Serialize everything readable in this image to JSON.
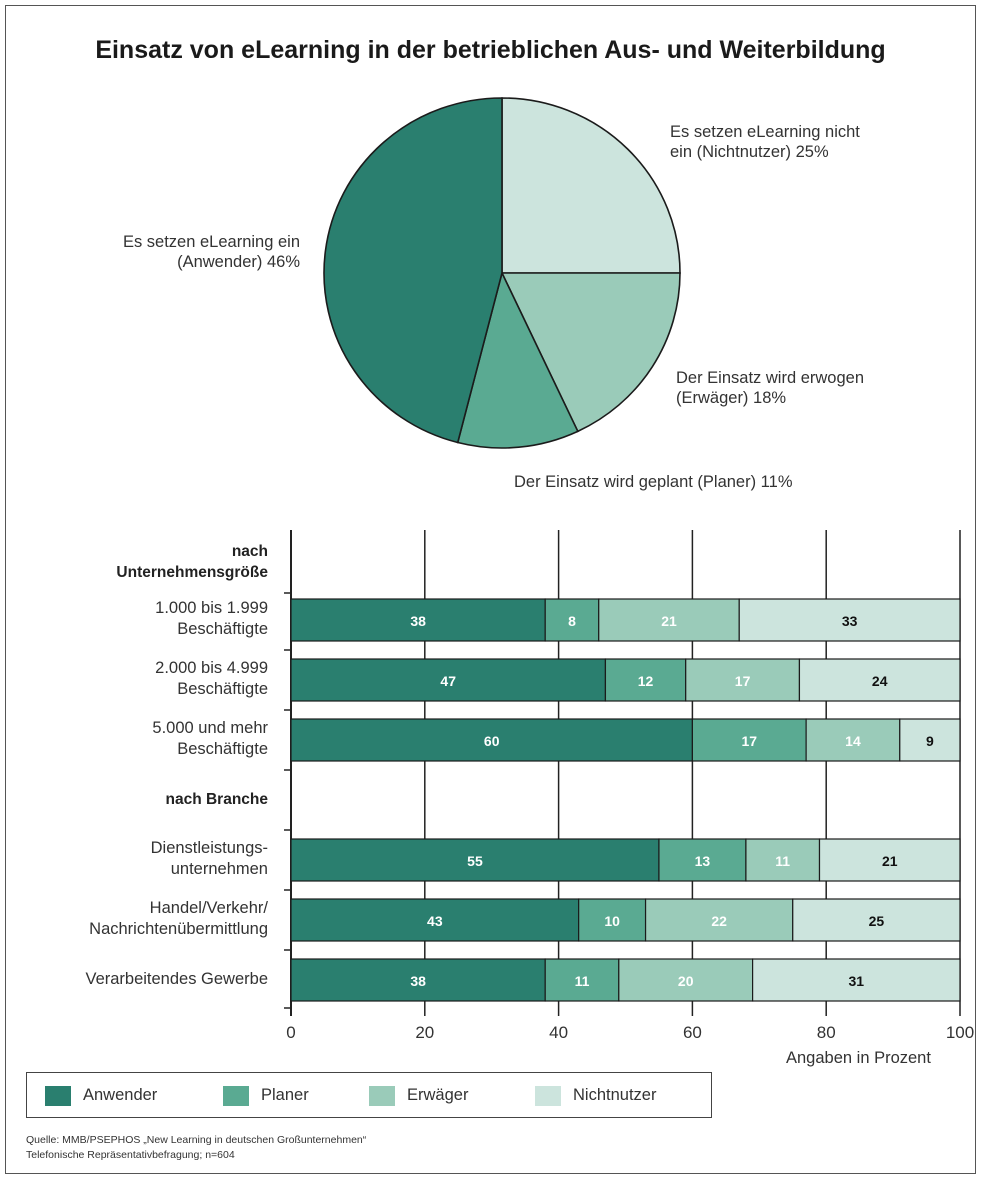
{
  "colors": {
    "anwender": "#2a7f6f",
    "planer": "#5aaa92",
    "erwaeger": "#9acbb9",
    "nichtnutzer": "#cce4dd"
  },
  "chart_data": [
    {
      "type": "pie",
      "title": "Einsatz von eLearning in der betrieblichen Aus- und Weiterbildung",
      "slices": [
        {
          "key": "nichtnutzer",
          "label_lines": [
            "Es setzen eLearning nicht",
            "ein (Nichtnutzer) 25%"
          ],
          "value": 25
        },
        {
          "key": "erwaeger",
          "label_lines": [
            "Der Einsatz wird erwogen",
            "(Erwäger) 18%"
          ],
          "value": 18
        },
        {
          "key": "planer",
          "label_lines": [
            "Der Einsatz wird geplant (Planer) 11%"
          ],
          "value": 11
        },
        {
          "key": "anwender",
          "label_lines": [
            "Es setzen eLearning ein",
            "(Anwender) 46%"
          ],
          "value": 46
        }
      ]
    },
    {
      "type": "bar",
      "stacked": true,
      "orientation": "horizontal",
      "xlabel": "Angaben in Prozent",
      "xlim": [
        0,
        100
      ],
      "xticks": [
        "0",
        "20",
        "40",
        "60",
        "80",
        "100"
      ],
      "rows": [
        {
          "kind": "header",
          "label_lines": [
            "nach",
            "Unternehmensgröße"
          ]
        },
        {
          "kind": "bar",
          "label_lines": [
            "1.000 bis 1.999",
            "Beschäftigte"
          ],
          "values": [
            38,
            8,
            21,
            33
          ]
        },
        {
          "kind": "bar",
          "label_lines": [
            "2.000 bis 4.999",
            "Beschäftigte"
          ],
          "values": [
            47,
            12,
            17,
            24
          ]
        },
        {
          "kind": "bar",
          "label_lines": [
            "5.000 und mehr",
            "Beschäftigte"
          ],
          "values": [
            60,
            17,
            14,
            9
          ]
        },
        {
          "kind": "header",
          "label_lines": [
            "nach Branche"
          ]
        },
        {
          "kind": "bar",
          "label_lines": [
            "Dienstleistungs-",
            "unternehmen"
          ],
          "values": [
            55,
            13,
            11,
            21
          ]
        },
        {
          "kind": "bar",
          "label_lines": [
            "Handel/Verkehr/",
            "Nachrichtenübermittlung"
          ],
          "values": [
            43,
            10,
            22,
            25
          ]
        },
        {
          "kind": "bar",
          "label_lines": [
            "Verarbeitendes Gewerbe"
          ],
          "values": [
            38,
            11,
            20,
            31
          ]
        }
      ],
      "series": [
        {
          "key": "anwender",
          "name": "Anwender"
        },
        {
          "key": "planer",
          "name": "Planer"
        },
        {
          "key": "erwaeger",
          "name": "Erwäger"
        },
        {
          "key": "nichtnutzer",
          "name": "Nichtnutzer"
        }
      ]
    }
  ],
  "source_lines": [
    "Quelle: MMB/PSEPHOS „New Learning in deutschen Großunternehmen“",
    "Telefonische Repräsentativbefragung; n=604"
  ]
}
